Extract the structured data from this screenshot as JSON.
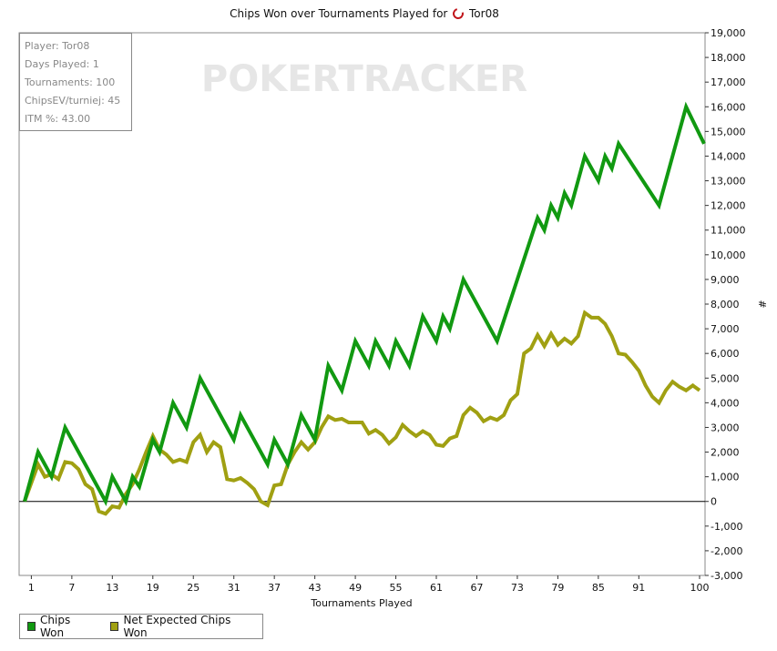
{
  "chart_data": {
    "type": "line",
    "title": "Chips Won over Tournaments Played for",
    "title_player": "Tor08",
    "xlabel": "Tournaments Played",
    "ylabel": "#",
    "xlim": [
      0,
      100
    ],
    "ylim": [
      -3000,
      19000
    ],
    "x_ticks": [
      1,
      7,
      13,
      19,
      25,
      31,
      37,
      43,
      49,
      55,
      61,
      67,
      73,
      79,
      85,
      91,
      100
    ],
    "y_ticks": [
      -3000,
      -2000,
      -1000,
      0,
      1000,
      2000,
      3000,
      4000,
      5000,
      6000,
      7000,
      8000,
      9000,
      10000,
      11000,
      12000,
      13000,
      14000,
      15000,
      16000,
      17000,
      18000,
      19000
    ],
    "y_tick_labels": [
      "-3,000",
      "-2,000",
      "-1,000",
      "0",
      "1,000",
      "2,000",
      "3,000",
      "4,000",
      "5,000",
      "6,000",
      "7,000",
      "8,000",
      "9,000",
      "10,000",
      "11,000",
      "12,000",
      "13,000",
      "14,000",
      "15,000",
      "16,000",
      "17,000",
      "18,000",
      "19,000"
    ],
    "legend_position": "bottom-left",
    "watermark": "POKERTRACKER",
    "series": [
      {
        "name": "Chips Won",
        "color": "#119911",
        "points": [
          [
            0,
            0
          ],
          [
            2,
            2000
          ],
          [
            4,
            1000
          ],
          [
            6,
            3000
          ],
          [
            12,
            0
          ],
          [
            13,
            1000
          ],
          [
            15,
            0
          ],
          [
            16,
            1000
          ],
          [
            17,
            600
          ],
          [
            19,
            2500
          ],
          [
            20,
            2000
          ],
          [
            22,
            4000
          ],
          [
            24,
            3000
          ],
          [
            26,
            5000
          ],
          [
            31,
            2500
          ],
          [
            32,
            3500
          ],
          [
            36,
            1500
          ],
          [
            37,
            2500
          ],
          [
            39,
            1500
          ],
          [
            41,
            3500
          ],
          [
            43,
            2500
          ],
          [
            45,
            5500
          ],
          [
            47,
            4500
          ],
          [
            49,
            6500
          ],
          [
            51,
            5500
          ],
          [
            52,
            6500
          ],
          [
            54,
            5500
          ],
          [
            55,
            6500
          ],
          [
            57,
            5500
          ],
          [
            59,
            7500
          ],
          [
            61,
            6500
          ],
          [
            62,
            7500
          ],
          [
            63,
            7000
          ],
          [
            65,
            9000
          ],
          [
            70,
            6500
          ],
          [
            76,
            11500
          ],
          [
            77,
            11000
          ],
          [
            78,
            12000
          ],
          [
            79,
            11500
          ],
          [
            80,
            12500
          ],
          [
            81,
            12000
          ],
          [
            83,
            14000
          ],
          [
            85,
            13000
          ],
          [
            86,
            14000
          ],
          [
            87,
            13500
          ],
          [
            88,
            14500
          ],
          [
            94,
            12000
          ],
          [
            98,
            16000
          ],
          [
            101,
            14500
          ]
        ]
      },
      {
        "name": "Net Expected Chips Won",
        "color": "#a0a012",
        "points": [
          [
            0,
            0
          ],
          [
            2,
            1500
          ],
          [
            3,
            1000
          ],
          [
            4,
            1100
          ],
          [
            5,
            900
          ],
          [
            6,
            1600
          ],
          [
            7,
            1550
          ],
          [
            8,
            1300
          ],
          [
            9,
            700
          ],
          [
            10,
            500
          ],
          [
            11,
            -400
          ],
          [
            12,
            -500
          ],
          [
            13,
            -200
          ],
          [
            14,
            -250
          ],
          [
            15,
            300
          ],
          [
            16,
            700
          ],
          [
            17,
            1300
          ],
          [
            18,
            2000
          ],
          [
            19,
            2650
          ],
          [
            20,
            2100
          ],
          [
            21,
            1900
          ],
          [
            22,
            1600
          ],
          [
            23,
            1700
          ],
          [
            24,
            1600
          ],
          [
            25,
            2400
          ],
          [
            26,
            2700
          ],
          [
            27,
            2000
          ],
          [
            28,
            2400
          ],
          [
            29,
            2200
          ],
          [
            30,
            900
          ],
          [
            31,
            850
          ],
          [
            32,
            950
          ],
          [
            33,
            750
          ],
          [
            34,
            500
          ],
          [
            35,
            0
          ],
          [
            36,
            -150
          ],
          [
            37,
            650
          ],
          [
            38,
            700
          ],
          [
            39,
            1500
          ],
          [
            40,
            2000
          ],
          [
            41,
            2400
          ],
          [
            42,
            2100
          ],
          [
            43,
            2400
          ],
          [
            44,
            3000
          ],
          [
            45,
            3450
          ],
          [
            46,
            3300
          ],
          [
            47,
            3350
          ],
          [
            48,
            3200
          ],
          [
            49,
            3200
          ],
          [
            50,
            3200
          ],
          [
            51,
            2750
          ],
          [
            52,
            2900
          ],
          [
            53,
            2700
          ],
          [
            54,
            2350
          ],
          [
            55,
            2600
          ],
          [
            56,
            3100
          ],
          [
            57,
            2850
          ],
          [
            58,
            2650
          ],
          [
            59,
            2850
          ],
          [
            60,
            2700
          ],
          [
            61,
            2300
          ],
          [
            62,
            2250
          ],
          [
            63,
            2550
          ],
          [
            64,
            2650
          ],
          [
            65,
            3500
          ],
          [
            66,
            3800
          ],
          [
            67,
            3600
          ],
          [
            68,
            3250
          ],
          [
            69,
            3400
          ],
          [
            70,
            3300
          ],
          [
            71,
            3500
          ],
          [
            72,
            4100
          ],
          [
            73,
            4350
          ],
          [
            74,
            6000
          ],
          [
            75,
            6200
          ],
          [
            76,
            6750
          ],
          [
            77,
            6300
          ],
          [
            78,
            6800
          ],
          [
            79,
            6350
          ],
          [
            80,
            6600
          ],
          [
            81,
            6400
          ],
          [
            82,
            6700
          ],
          [
            83,
            7650
          ],
          [
            84,
            7450
          ],
          [
            85,
            7450
          ],
          [
            86,
            7200
          ],
          [
            87,
            6700
          ],
          [
            88,
            6000
          ],
          [
            89,
            5950
          ],
          [
            90,
            5650
          ],
          [
            91,
            5300
          ],
          [
            92,
            4700
          ],
          [
            93,
            4250
          ],
          [
            94,
            4000
          ],
          [
            95,
            4500
          ],
          [
            96,
            4850
          ],
          [
            97,
            4650
          ],
          [
            98,
            4500
          ],
          [
            99,
            4700
          ],
          [
            100,
            4500
          ]
        ]
      }
    ]
  },
  "stats": {
    "player": "Player: Tor08",
    "days": "Days Played: 1",
    "tournaments": "Tournaments: 100",
    "chips_ev": "ChipsEV/turniej: 45",
    "itm": "ITM %: 43.00"
  },
  "legend": {
    "item1": "Chips Won",
    "item2": "Net Expected Chips Won"
  }
}
